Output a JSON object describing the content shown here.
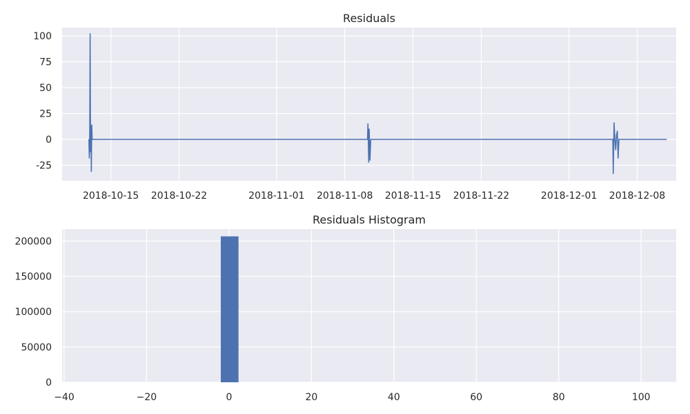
{
  "chart_data": [
    {
      "type": "line",
      "title": "Residuals",
      "xlabel": "",
      "ylabel": "",
      "x_type": "date",
      "xlim": [
        "2018-10-10",
        "2018-12-12"
      ],
      "ylim": [
        -40,
        108
      ],
      "x_ticks": [
        "2018-10-15",
        "2018-10-22",
        "2018-11-01",
        "2018-11-08",
        "2018-11-15",
        "2018-11-22",
        "2018-12-01",
        "2018-12-08"
      ],
      "y_ticks": [
        -25,
        0,
        25,
        50,
        75,
        100
      ],
      "grid": true,
      "series": [
        {
          "color": "#4c72b0",
          "x": [
            "2018-10-12T18:00",
            "2018-10-12T19:00",
            "2018-10-12T20:00",
            "2018-10-12T21:00",
            "2018-10-12T22:00",
            "2018-10-12T23:00",
            "2018-10-13T00:00",
            "2018-10-13T01:00",
            "2018-10-13T02:00",
            "2018-10-13T04:00",
            "2018-11-10T08:00",
            "2018-11-10T09:00",
            "2018-11-10T11:00",
            "2018-11-10T12:00",
            "2018-11-10T14:00",
            "2018-11-10T16:00",
            "2018-11-10T18:00",
            "2018-12-05T12:00",
            "2018-12-05T13:00",
            "2018-12-05T15:00",
            "2018-12-05T17:00",
            "2018-12-05T19:00",
            "2018-12-05T21:00",
            "2018-12-05T23:00",
            "2018-12-06T01:00",
            "2018-12-06T03:00",
            "2018-12-11T00:00"
          ],
          "y": [
            0,
            -18,
            0,
            102,
            -12,
            13,
            -31,
            14,
            0,
            0,
            0,
            15,
            -22,
            10,
            -20,
            0,
            0,
            0,
            -33,
            16,
            0,
            -10,
            4,
            8,
            -18,
            0,
            0
          ]
        }
      ]
    },
    {
      "type": "bar",
      "title": "Residuals Histogram",
      "xlabel": "",
      "ylabel": "",
      "xlim": [
        -40.5,
        108.5
      ],
      "ylim": [
        0,
        217000
      ],
      "x_ticks": [
        -40,
        -20,
        0,
        20,
        40,
        60,
        80,
        100
      ],
      "y_ticks": [
        0,
        50000,
        100000,
        150000,
        200000
      ],
      "grid": true,
      "bins": [
        {
          "x0": -2.0,
          "x1": 2.3,
          "count": 206700,
          "color": "#4c72b0"
        }
      ]
    }
  ]
}
